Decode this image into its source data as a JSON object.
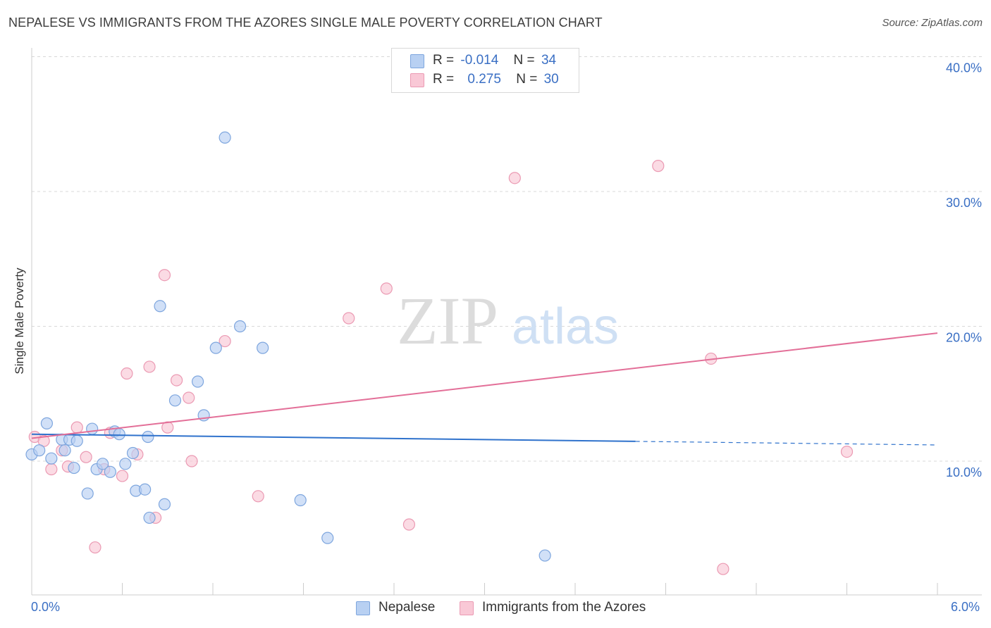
{
  "title": "NEPALESE VS IMMIGRANTS FROM THE AZORES SINGLE MALE POVERTY CORRELATION CHART",
  "source": "Source: ZipAtlas.com",
  "watermark": {
    "zip": "ZIP",
    "atlas": "atlas"
  },
  "legend_top": [
    {
      "r_label": "R =",
      "r_value": "-0.014",
      "n_label": "N =",
      "n_value": "34"
    },
    {
      "r_label": "R =",
      "r_value": "0.275",
      "n_label": "N =",
      "n_value": "30"
    }
  ],
  "colors": {
    "blue_fill": "#b8d0f2",
    "blue_stroke": "#7ea6de",
    "blue_line": "#2f72cc",
    "pink_fill": "#f9c8d6",
    "pink_stroke": "#eb9ab3",
    "pink_line": "#e36f98",
    "axis_text": "#3a6fc4",
    "grid": "#d8d8d8"
  },
  "chart_data": {
    "type": "scatter",
    "title": "NEPALESE VS IMMIGRANTS FROM THE AZORES SINGLE MALE POVERTY CORRELATION CHART",
    "xlabel": "",
    "ylabel": "Single Male Poverty",
    "xlim": [
      0,
      6
    ],
    "ylim": [
      0,
      40
    ],
    "x_tick_labels": [
      "0.0%",
      "6.0%"
    ],
    "y_ticks": [
      10,
      20,
      30,
      40
    ],
    "y_tick_labels": [
      "10.0%",
      "20.0%",
      "30.0%",
      "40.0%"
    ],
    "grid": true,
    "legend_position": "bottom",
    "series": [
      {
        "name": "Nepalese",
        "color": "blue",
        "R": -0.014,
        "N": 34,
        "trend": {
          "y0": 12.0,
          "y1": 11.2,
          "solid_until_x": 4.0
        },
        "points": [
          [
            0.0,
            10.5
          ],
          [
            0.05,
            10.8
          ],
          [
            0.1,
            12.8
          ],
          [
            0.13,
            10.2
          ],
          [
            0.2,
            11.6
          ],
          [
            0.22,
            10.8
          ],
          [
            0.25,
            11.6
          ],
          [
            0.28,
            9.5
          ],
          [
            0.3,
            11.5
          ],
          [
            0.37,
            7.6
          ],
          [
            0.4,
            12.4
          ],
          [
            0.43,
            9.4
          ],
          [
            0.47,
            9.8
          ],
          [
            0.52,
            9.2
          ],
          [
            0.55,
            12.2
          ],
          [
            0.58,
            12.0
          ],
          [
            0.62,
            9.8
          ],
          [
            0.67,
            10.6
          ],
          [
            0.69,
            7.8
          ],
          [
            0.75,
            7.9
          ],
          [
            0.77,
            11.8
          ],
          [
            0.78,
            5.8
          ],
          [
            0.85,
            21.5
          ],
          [
            0.88,
            6.8
          ],
          [
            0.95,
            14.5
          ],
          [
            1.1,
            15.9
          ],
          [
            1.14,
            13.4
          ],
          [
            1.22,
            18.4
          ],
          [
            1.28,
            34.0
          ],
          [
            1.38,
            20.0
          ],
          [
            1.53,
            18.4
          ],
          [
            1.78,
            7.1
          ],
          [
            1.96,
            4.3
          ],
          [
            3.4,
            3.0
          ]
        ]
      },
      {
        "name": "Immigrants from the Azores",
        "color": "pink",
        "R": 0.275,
        "N": 30,
        "trend": {
          "y0": 11.7,
          "y1": 19.5,
          "solid_until_x": 6.0
        },
        "points": [
          [
            0.02,
            11.8
          ],
          [
            0.08,
            11.5
          ],
          [
            0.13,
            9.4
          ],
          [
            0.2,
            10.8
          ],
          [
            0.24,
            9.6
          ],
          [
            0.3,
            12.5
          ],
          [
            0.36,
            10.3
          ],
          [
            0.42,
            3.6
          ],
          [
            0.48,
            9.4
          ],
          [
            0.52,
            12.1
          ],
          [
            0.6,
            8.9
          ],
          [
            0.63,
            16.5
          ],
          [
            0.7,
            10.5
          ],
          [
            0.78,
            17.0
          ],
          [
            0.82,
            5.8
          ],
          [
            0.88,
            23.8
          ],
          [
            0.9,
            12.5
          ],
          [
            0.96,
            16.0
          ],
          [
            1.04,
            14.7
          ],
          [
            1.06,
            10.0
          ],
          [
            1.28,
            18.9
          ],
          [
            1.5,
            7.4
          ],
          [
            2.1,
            20.6
          ],
          [
            2.35,
            22.8
          ],
          [
            2.5,
            5.3
          ],
          [
            3.2,
            31.0
          ],
          [
            4.15,
            31.9
          ],
          [
            4.5,
            17.6
          ],
          [
            4.58,
            2.0
          ],
          [
            5.4,
            10.7
          ]
        ]
      }
    ]
  }
}
